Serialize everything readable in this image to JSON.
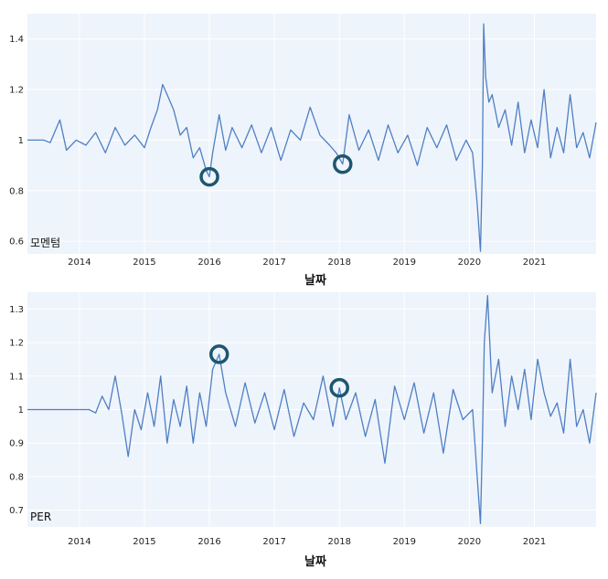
{
  "chart_data": [
    {
      "type": "line",
      "panel_label": "모멘텀",
      "xlabel": "날짜",
      "ylabel": "",
      "xlim": [
        2013.2,
        2021.95
      ],
      "ylim": [
        0.55,
        1.5
      ],
      "yticks": [
        0.6,
        0.8,
        1,
        1.2,
        1.4
      ],
      "ytick_labels": [
        "0.6",
        "0.8",
        "1",
        "1.2",
        "1.4"
      ],
      "xticks": [
        2014,
        2015,
        2016,
        2017,
        2018,
        2019,
        2020,
        2021
      ],
      "xtick_labels": [
        "2014",
        "2015",
        "2016",
        "2017",
        "2018",
        "2019",
        "2020",
        "2021"
      ],
      "grid": true,
      "line_color": "#4f7fc4",
      "marker_color": "#1d5670",
      "circled_points": [
        {
          "x": 2016.0,
          "y": 0.855
        },
        {
          "x": 2018.05,
          "y": 0.905
        }
      ],
      "series": [
        {
          "x": [
            2013.2,
            2013.45,
            2013.55,
            2013.7,
            2013.8,
            2013.95,
            2014.1,
            2014.25,
            2014.4,
            2014.55,
            2014.7,
            2014.85,
            2015.0,
            2015.1,
            2015.2,
            2015.28,
            2015.35,
            2015.45,
            2015.55,
            2015.65,
            2015.75,
            2015.85,
            2015.95,
            2016.0,
            2016.05,
            2016.15,
            2016.25,
            2016.35,
            2016.5,
            2016.65,
            2016.8,
            2016.95,
            2017.1,
            2017.25,
            2017.4,
            2017.55,
            2017.7,
            2017.85,
            2017.95,
            2018.05,
            2018.15,
            2018.3,
            2018.45,
            2018.6,
            2018.75,
            2018.9,
            2019.05,
            2019.2,
            2019.35,
            2019.5,
            2019.65,
            2019.8,
            2019.95,
            2020.05,
            2020.12,
            2020.17,
            2020.2,
            2020.22,
            2020.25,
            2020.3,
            2020.35,
            2020.45,
            2020.55,
            2020.65,
            2020.75,
            2020.85,
            2020.95,
            2021.05,
            2021.15,
            2021.25,
            2021.35,
            2021.45,
            2021.55,
            2021.65,
            2021.75,
            2021.85,
            2021.95
          ],
          "y": [
            1.0,
            1.0,
            0.99,
            1.08,
            0.96,
            1.0,
            0.98,
            1.03,
            0.95,
            1.05,
            0.98,
            1.02,
            0.97,
            1.05,
            1.12,
            1.22,
            1.18,
            1.12,
            1.02,
            1.05,
            0.93,
            0.97,
            0.88,
            0.855,
            0.95,
            1.1,
            0.96,
            1.05,
            0.97,
            1.06,
            0.95,
            1.05,
            0.92,
            1.04,
            1.0,
            1.13,
            1.02,
            0.98,
            0.95,
            0.905,
            1.1,
            0.96,
            1.04,
            0.92,
            1.06,
            0.95,
            1.02,
            0.9,
            1.05,
            0.97,
            1.06,
            0.92,
            1.0,
            0.95,
            0.75,
            0.56,
            0.9,
            1.46,
            1.25,
            1.15,
            1.18,
            1.05,
            1.12,
            0.98,
            1.15,
            0.95,
            1.08,
            0.97,
            1.2,
            0.93,
            1.05,
            0.95,
            1.18,
            0.97,
            1.03,
            0.93,
            1.07
          ]
        }
      ]
    },
    {
      "type": "line",
      "panel_label": "PER",
      "xlabel": "날짜",
      "ylabel": "",
      "xlim": [
        2013.2,
        2021.95
      ],
      "ylim": [
        0.65,
        1.35
      ],
      "yticks": [
        0.7,
        0.8,
        0.9,
        1,
        1.1,
        1.2,
        1.3
      ],
      "ytick_labels": [
        "0.7",
        "0.8",
        "0.9",
        "1",
        "1.1",
        "1.2",
        "1.3"
      ],
      "xticks": [
        2014,
        2015,
        2016,
        2017,
        2018,
        2019,
        2020,
        2021
      ],
      "xtick_labels": [
        "2014",
        "2015",
        "2016",
        "2017",
        "2018",
        "2019",
        "2020",
        "2021"
      ],
      "grid": true,
      "line_color": "#4f7fc4",
      "marker_color": "#1d5670",
      "circled_points": [
        {
          "x": 2016.15,
          "y": 1.165
        },
        {
          "x": 2018.0,
          "y": 1.065
        }
      ],
      "series": [
        {
          "x": [
            2013.2,
            2013.5,
            2013.8,
            2014.0,
            2014.15,
            2014.25,
            2014.35,
            2014.45,
            2014.55,
            2014.65,
            2014.75,
            2014.85,
            2014.95,
            2015.05,
            2015.15,
            2015.25,
            2015.35,
            2015.45,
            2015.55,
            2015.65,
            2015.75,
            2015.85,
            2015.95,
            2016.05,
            2016.15,
            2016.25,
            2016.4,
            2016.55,
            2016.7,
            2016.85,
            2017.0,
            2017.15,
            2017.3,
            2017.45,
            2017.6,
            2017.75,
            2017.9,
            2018.0,
            2018.1,
            2018.25,
            2018.4,
            2018.55,
            2018.7,
            2018.85,
            2019.0,
            2019.15,
            2019.3,
            2019.45,
            2019.6,
            2019.75,
            2019.9,
            2020.05,
            2020.12,
            2020.17,
            2020.2,
            2020.23,
            2020.28,
            2020.35,
            2020.45,
            2020.55,
            2020.65,
            2020.75,
            2020.85,
            2020.95,
            2021.05,
            2021.15,
            2021.25,
            2021.35,
            2021.45,
            2021.55,
            2021.65,
            2021.75,
            2021.85,
            2021.95
          ],
          "y": [
            1.0,
            1.0,
            1.0,
            1.0,
            1.0,
            0.99,
            1.04,
            1.0,
            1.1,
            0.99,
            0.86,
            1.0,
            0.94,
            1.05,
            0.95,
            1.1,
            0.9,
            1.03,
            0.95,
            1.07,
            0.9,
            1.05,
            0.95,
            1.12,
            1.165,
            1.05,
            0.95,
            1.08,
            0.96,
            1.05,
            0.94,
            1.06,
            0.92,
            1.02,
            0.97,
            1.1,
            0.95,
            1.065,
            0.97,
            1.05,
            0.92,
            1.03,
            0.84,
            1.07,
            0.97,
            1.08,
            0.93,
            1.05,
            0.87,
            1.06,
            0.97,
            1.0,
            0.8,
            0.66,
            0.9,
            1.2,
            1.34,
            1.05,
            1.15,
            0.95,
            1.1,
            1.0,
            1.12,
            0.97,
            1.15,
            1.05,
            0.98,
            1.02,
            0.93,
            1.15,
            0.95,
            1.0,
            0.9,
            1.05
          ]
        }
      ]
    }
  ]
}
